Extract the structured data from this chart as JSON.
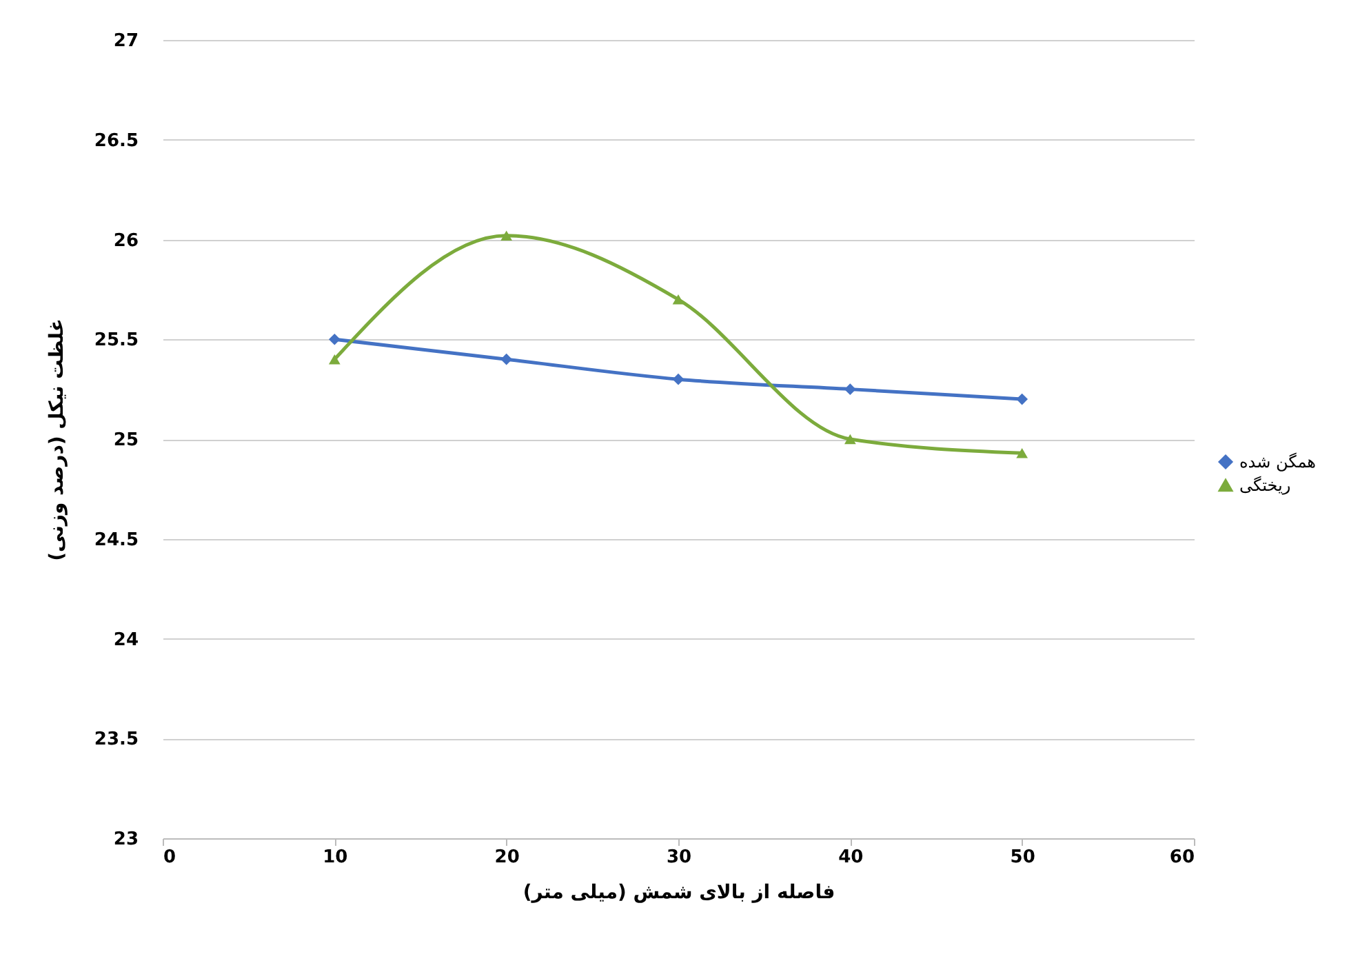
{
  "chart_data": {
    "type": "line",
    "xlabel": "فاصله از بالای شمش (میلی متر)",
    "ylabel": "غلظت نیکل (درصد وزنی)",
    "x": [
      10,
      20,
      30,
      40,
      50
    ],
    "series": [
      {
        "name": "همگن شده",
        "color": "#4472c4",
        "marker": "diamond",
        "values": [
          25.5,
          25.4,
          25.3,
          25.25,
          25.2
        ]
      },
      {
        "name": "ریختگی",
        "color": "#7cab3c",
        "marker": "triangle",
        "values": [
          25.4,
          26.02,
          25.7,
          25.0,
          24.93
        ]
      }
    ],
    "xlim": [
      0,
      60
    ],
    "xticks": [
      0,
      10,
      20,
      30,
      40,
      50,
      60
    ],
    "ylim": [
      23,
      27
    ],
    "yticks": [
      23,
      23.5,
      24,
      24.5,
      25,
      25.5,
      26,
      26.5,
      27
    ],
    "grid": "y",
    "legend": "right",
    "line_style": "solid"
  }
}
